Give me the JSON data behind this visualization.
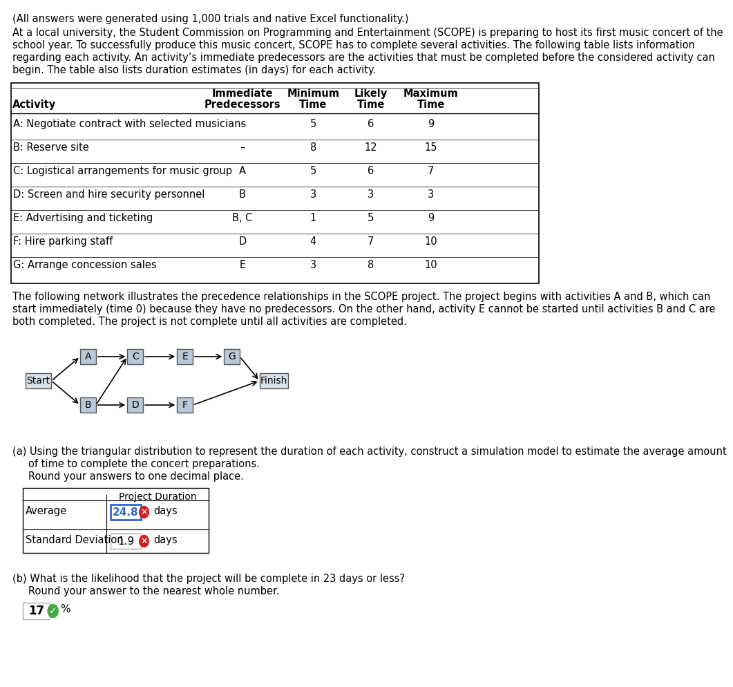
{
  "intro_text": "(All answers were generated using 1,000 trials and native Excel functionality.)",
  "paragraph": "At a local university, the Student Commission on Programming and Entertainment (SCOPE) is preparing to host its first music concert of the school year. To successfully produce this music concert, SCOPE has to complete several activities. The following table lists information regarding each activity. An activity’s immediate predecessors are the activities that must be completed before the considered activity can begin. The table also lists duration estimates (in days) for each activity.",
  "table_headers": [
    "Activity",
    "Immediate\nPredecessors",
    "Minimum\nTime",
    "Likely\nTime",
    "Maximum\nTime"
  ],
  "table_headers_line1": [
    "",
    "Immediate",
    "Minimum",
    "Likely",
    "Maximum"
  ],
  "table_headers_line2": [
    "Activity",
    "Predecessors",
    "Time",
    "Time",
    "Time"
  ],
  "table_data": [
    [
      "A: Negotiate contract with selected musicians",
      "–",
      "5",
      "6",
      "9"
    ],
    [
      "B: Reserve site",
      "–",
      "8",
      "12",
      "15"
    ],
    [
      "C: Logistical arrangements for music group",
      "A",
      "5",
      "6",
      "7"
    ],
    [
      "D: Screen and hire security personnel",
      "B",
      "3",
      "3",
      "3"
    ],
    [
      "E: Advertising and ticketing",
      "B, C",
      "1",
      "5",
      "9"
    ],
    [
      "F: Hire parking staff",
      "D",
      "4",
      "7",
      "10"
    ],
    [
      "G: Arrange concession sales",
      "E",
      "3",
      "8",
      "10"
    ]
  ],
  "network_text": "The following network illustrates the precedence relationships in the SCOPE project. The project begins with activities A and B, which can start immediately (time 0) because they have no predecessors. On the other hand, activity E cannot be started until activities B and C are both completed. The project is not complete until all activities are completed.",
  "part_a_text1": "(a) Using the triangular distribution to represent the duration of each activity, construct a simulation model to estimate the average amount",
  "part_a_text2": "    of time to complete the concert preparations.",
  "part_a_text3": "    Round your answers to one decimal place.",
  "small_table_headers": [
    "",
    "Project Duration"
  ],
  "small_table_rows": [
    [
      "Average",
      "24.8",
      "days"
    ],
    [
      "Standard Deviation",
      "1.9",
      "days"
    ]
  ],
  "part_b_text1": "(b) What is the likelihood that the project will be complete in 23 days or less?",
  "part_b_text2": "    Round your answer to the nearest whole number.",
  "answer_b": "17",
  "bg_color": "#ffffff",
  "text_color": "#000000",
  "table_border_color": "#000000",
  "node_fill_color": "#b8c8d8",
  "node_border_color": "#666666",
  "average_box_border": "#3366cc",
  "average_text_color": "#3366cc",
  "answer_b_border": "#aaaaaa"
}
